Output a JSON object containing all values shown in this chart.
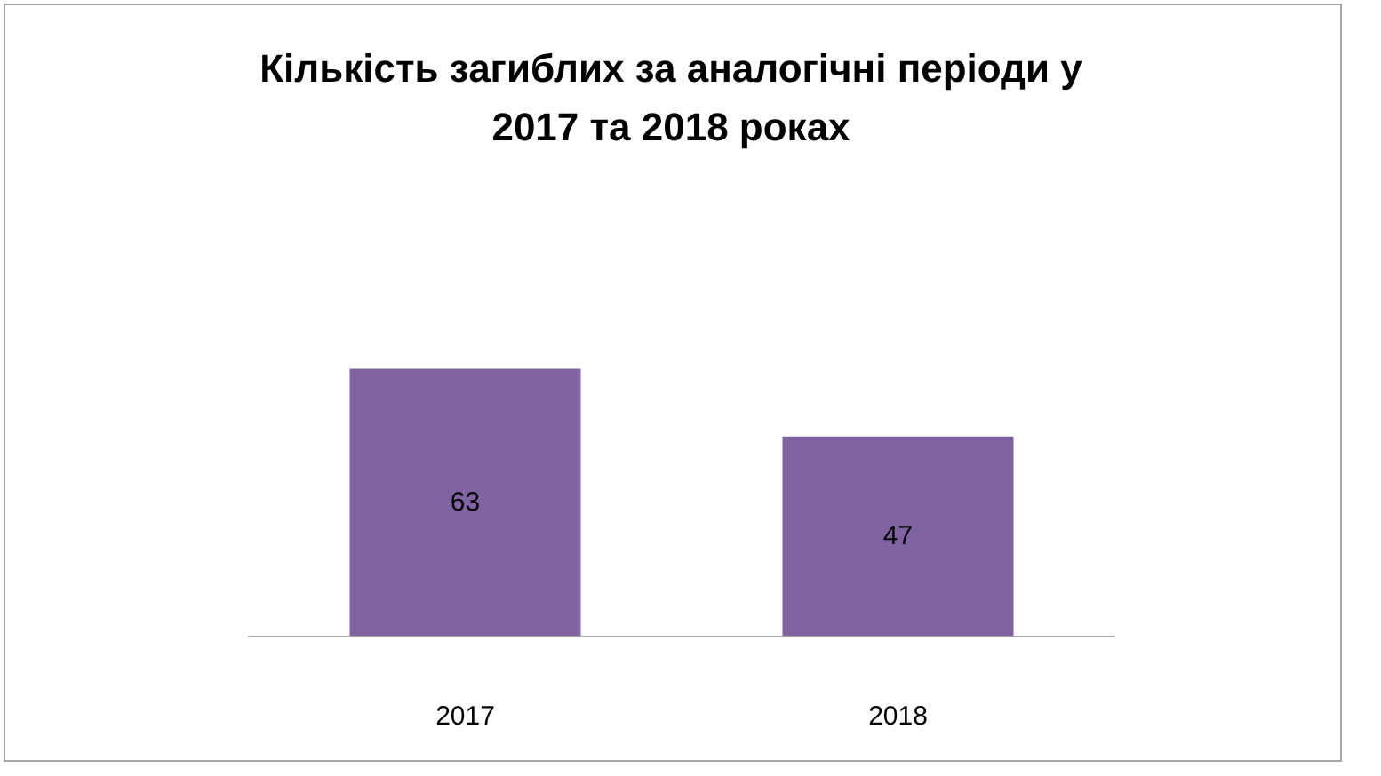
{
  "chart_data": {
    "type": "bar",
    "title": "Кількість загиблих за аналогічні періоди у 2017 та 2018 роках",
    "categories": [
      "2017",
      "2018"
    ],
    "values": [
      63,
      47
    ],
    "color": "#8064a2",
    "data_labels": true
  }
}
